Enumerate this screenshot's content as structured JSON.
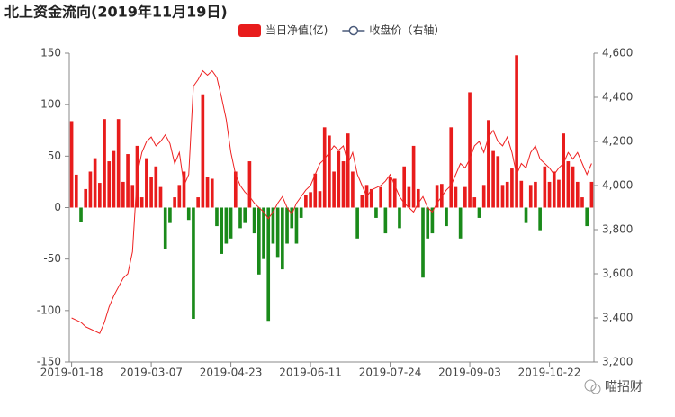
{
  "chart_data": {
    "type": "bar_line",
    "title": "北上资金流向(2019年11月19日)",
    "watermark": "喵招财",
    "categories": [
      "2019-01-18",
      null,
      null,
      null,
      null,
      null,
      null,
      null,
      null,
      null,
      null,
      null,
      null,
      null,
      null,
      null,
      null,
      "2019-03-07",
      null,
      null,
      null,
      null,
      null,
      null,
      null,
      null,
      null,
      null,
      null,
      null,
      null,
      null,
      null,
      null,
      "2019-04-23",
      null,
      null,
      null,
      null,
      null,
      null,
      null,
      null,
      null,
      null,
      null,
      null,
      null,
      null,
      null,
      null,
      "2019-06-11",
      null,
      null,
      null,
      null,
      null,
      null,
      null,
      null,
      null,
      null,
      null,
      null,
      null,
      null,
      null,
      null,
      "2019-07-24",
      null,
      null,
      null,
      null,
      null,
      null,
      null,
      null,
      null,
      null,
      null,
      null,
      null,
      null,
      null,
      null,
      "2019-09-03",
      null,
      null,
      null,
      null,
      null,
      null,
      null,
      null,
      null,
      null,
      null,
      null,
      null,
      null,
      null,
      null,
      "2019-10-22",
      null,
      null,
      null,
      null,
      null,
      null,
      null,
      null,
      null
    ],
    "series": [
      {
        "name": "当日净值(亿)",
        "type": "bar",
        "color": "#e81c1c",
        "negative_color": "#1a8a1a",
        "values": [
          84,
          32,
          -14,
          18,
          35,
          48,
          24,
          86,
          45,
          55,
          86,
          25,
          52,
          22,
          60,
          10,
          48,
          30,
          40,
          20,
          -40,
          -15,
          10,
          22,
          35,
          -12,
          -108,
          10,
          110,
          30,
          28,
          -18,
          -45,
          -35,
          -30,
          35,
          -20,
          -15,
          45,
          -25,
          -65,
          -50,
          -110,
          -35,
          -48,
          -60,
          -35,
          -20,
          -35,
          -10,
          12,
          15,
          33,
          16,
          78,
          70,
          35,
          55,
          45,
          72,
          35,
          -30,
          12,
          22,
          18,
          -10,
          20,
          -25,
          30,
          28,
          -20,
          40,
          20,
          60,
          18,
          -68,
          -30,
          -25,
          22,
          23,
          -18,
          78,
          20,
          -30,
          20,
          112,
          10,
          -10,
          22,
          85,
          55,
          50,
          22,
          25,
          38,
          148,
          26,
          -15,
          22,
          25,
          -22,
          40,
          25,
          35,
          27,
          72,
          45,
          40,
          25,
          10,
          -18,
          25
        ]
      },
      {
        "name": "收盘价（右轴）",
        "type": "line",
        "axis": "y2",
        "color": "#ee2222",
        "legend_color": "#4a5a7a",
        "values": [
          3400,
          3390,
          3380,
          3360,
          3350,
          3340,
          3330,
          3380,
          3450,
          3500,
          3540,
          3580,
          3600,
          3700,
          4050,
          4150,
          4200,
          4220,
          4180,
          4200,
          4230,
          4190,
          4100,
          4150,
          4000,
          4050,
          4450,
          4480,
          4520,
          4500,
          4520,
          4490,
          4400,
          4300,
          4150,
          4050,
          4000,
          3970,
          3950,
          3920,
          3900,
          3880,
          3850,
          3880,
          3920,
          3950,
          3900,
          3870,
          3920,
          3950,
          3980,
          4000,
          4050,
          4100,
          4120,
          4150,
          4180,
          4160,
          4180,
          4100,
          4150,
          4050,
          4000,
          3950,
          3980,
          3990,
          4000,
          4020,
          4050,
          4000,
          3950,
          3920,
          3900,
          3880,
          3920,
          3950,
          3900,
          3880,
          3920,
          3950,
          3980,
          4000,
          4050,
          4100,
          4080,
          4120,
          4180,
          4200,
          4150,
          4220,
          4250,
          4200,
          4180,
          4220,
          4150,
          4050,
          4100,
          4080,
          4150,
          4180,
          4120,
          4100,
          4080,
          4050,
          4080,
          4100,
          4150,
          4120,
          4150,
          4100,
          4050,
          4100
        ]
      }
    ],
    "ylim": [
      -150,
      150
    ],
    "yticks": [
      -150,
      -100,
      -50,
      0,
      50,
      100,
      150
    ],
    "y2lim": [
      3200,
      4600
    ],
    "y2ticks": [
      {
        "value": 3200,
        "label": "3,200"
      },
      {
        "value": 3400,
        "label": "3,400"
      },
      {
        "value": 3600,
        "label": "3,600"
      },
      {
        "value": 3800,
        "label": "3,800"
      },
      {
        "value": 4000,
        "label": "4,000"
      },
      {
        "value": 4200,
        "label": "4,200"
      },
      {
        "value": 4400,
        "label": "4,400"
      },
      {
        "value": 4600,
        "label": "4,600"
      }
    ]
  }
}
